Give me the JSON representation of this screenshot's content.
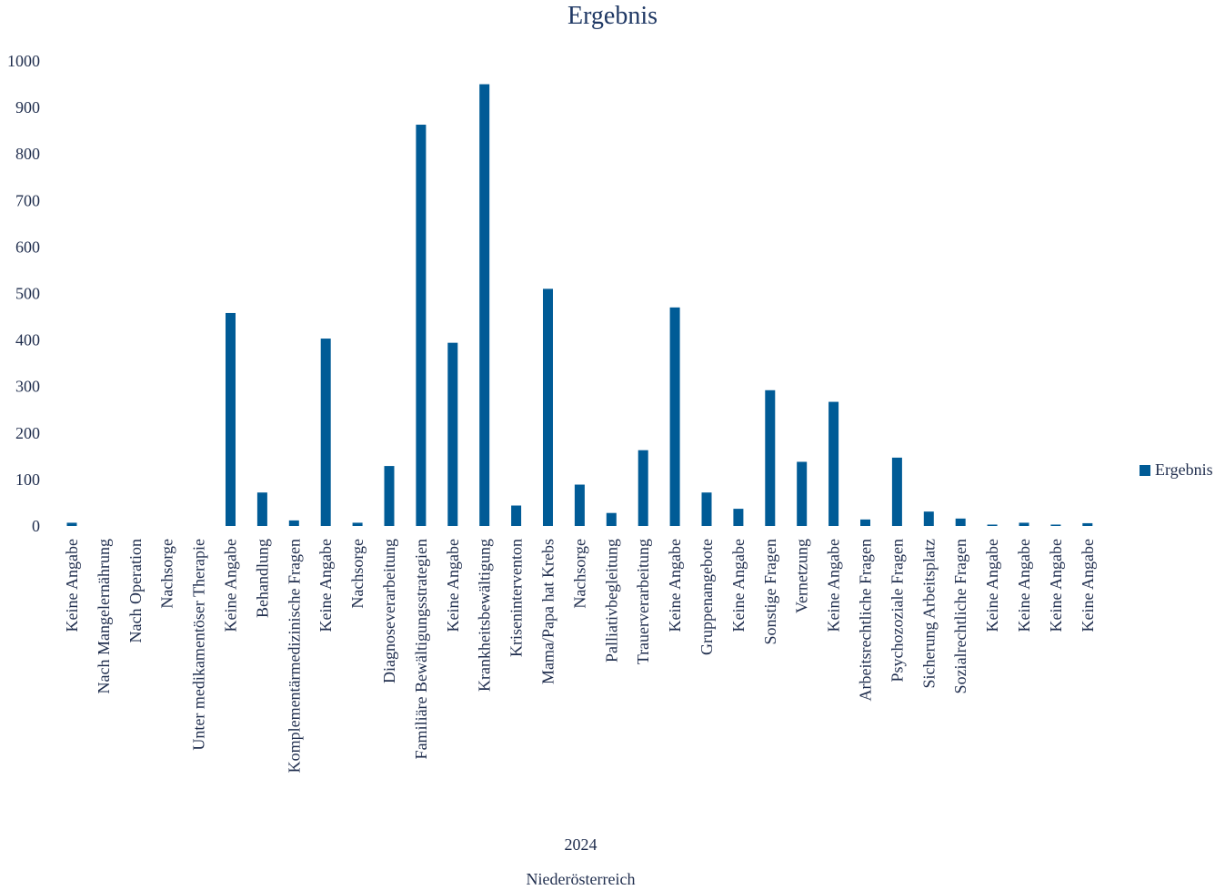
{
  "chart_data": {
    "type": "bar",
    "title": "Ergebnis",
    "xlabel": "",
    "ylabel": "",
    "ylim": [
      0,
      1000
    ],
    "yticks": [
      0,
      100,
      200,
      300,
      400,
      500,
      600,
      700,
      800,
      900,
      1000
    ],
    "x_group_labels": [
      "2024",
      "Niederösterreich"
    ],
    "legend_position": "right",
    "grid": false,
    "categories": [
      "Keine Angabe",
      "Nach Mangelernährung",
      "Nach Operation",
      "Nachsorge",
      "Unter medikamentöser Therapie",
      "Keine Angabe",
      "Behandlung",
      "Komplementärmedizinische Fragen",
      "Keine Angabe",
      "Nachsorge",
      "Diagnoseverarbeitung",
      "Familiäre Bewältigungsstrategien",
      "Keine Angabe",
      "Krankheitsbewältigung",
      "Kriseninterventon",
      "Mama/Papa hat Krebs",
      "Nachsorge",
      "Palliativbegleitung",
      "Trauerverarbeitung",
      "Keine Angabe",
      "Gruppenangebote",
      "Keine Angabe",
      "Sonstige Fragen",
      "Vernetzung",
      "Keine Angabe",
      "Arbeitsrechtliche Fragen",
      "Psychozoziale Fragen",
      "Sicherung Arbeitsplatz",
      "Sozialrechtliche Fragen",
      "Keine Angabe",
      "Keine Angabe",
      "Keine Angabe",
      "Keine Angabe"
    ],
    "series": [
      {
        "name": "Ergebnis",
        "color": "#005b96",
        "values": [
          7,
          0,
          0,
          0,
          0,
          458,
          72,
          12,
          403,
          7,
          129,
          863,
          394,
          950,
          44,
          510,
          89,
          28,
          163,
          470,
          72,
          37,
          292,
          138,
          267,
          14,
          147,
          31,
          16,
          3,
          7,
          3,
          6
        ]
      }
    ]
  }
}
